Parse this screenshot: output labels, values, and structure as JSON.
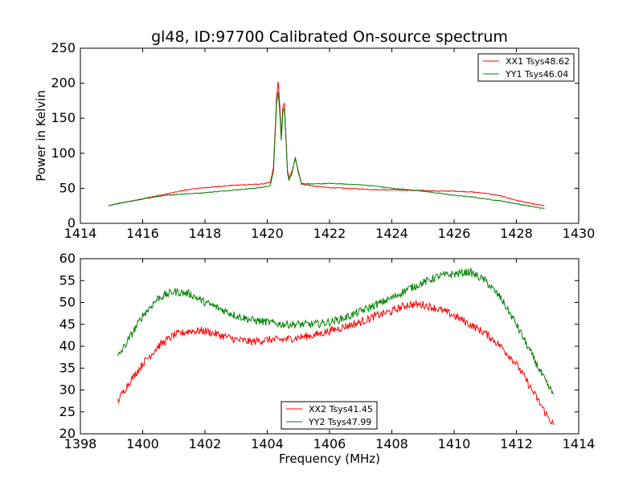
{
  "chart_data": [
    {
      "type": "line",
      "title": "gl48, ID:97700 Calibrated On-source spectrum",
      "xlabel": "",
      "ylabel": "Power in Kelvin",
      "xlim": [
        1414,
        1430
      ],
      "ylim": [
        0,
        250
      ],
      "xticks": [
        1414,
        1416,
        1418,
        1420,
        1422,
        1424,
        1426,
        1428,
        1430
      ],
      "yticks": [
        0,
        50,
        100,
        150,
        200,
        250
      ],
      "grid": false,
      "legend": "upper-right",
      "series": [
        {
          "name": "XX1 Tsys48.62",
          "color": "#ff0000",
          "x": [
            1414.9,
            1415.3,
            1415.8,
            1416.3,
            1416.8,
            1417.3,
            1417.8,
            1418.3,
            1418.8,
            1419.3,
            1419.8,
            1420.1,
            1420.2,
            1420.3,
            1420.35,
            1420.4,
            1420.45,
            1420.5,
            1420.55,
            1420.6,
            1420.65,
            1420.7,
            1420.8,
            1420.9,
            1421.0,
            1421.1,
            1421.5,
            1422.0,
            1422.5,
            1423.0,
            1423.5,
            1424.0,
            1424.5,
            1425.0,
            1425.5,
            1426.0,
            1426.5,
            1427.0,
            1427.5,
            1428.0,
            1428.5,
            1428.9
          ],
          "values": [
            25,
            29,
            33,
            38,
            42,
            47,
            50,
            52,
            54,
            55,
            56,
            58,
            80,
            180,
            203,
            170,
            125,
            165,
            172,
            125,
            75,
            65,
            75,
            92,
            75,
            56,
            53,
            51,
            50,
            49,
            48,
            48,
            47,
            47,
            46,
            46,
            45,
            43,
            39,
            33,
            28,
            25
          ]
        },
        {
          "name": "YY1 Tsys46.04",
          "color": "#008000",
          "x": [
            1414.9,
            1415.3,
            1415.8,
            1416.3,
            1416.8,
            1417.3,
            1417.8,
            1418.3,
            1418.8,
            1419.3,
            1419.8,
            1420.1,
            1420.2,
            1420.3,
            1420.35,
            1420.4,
            1420.45,
            1420.5,
            1420.55,
            1420.6,
            1420.65,
            1420.7,
            1420.8,
            1420.9,
            1421.0,
            1421.1,
            1421.5,
            1422.0,
            1422.5,
            1423.0,
            1423.5,
            1424.0,
            1424.5,
            1425.0,
            1425.5,
            1426.0,
            1426.5,
            1427.0,
            1427.5,
            1428.0,
            1428.5,
            1428.9
          ],
          "values": [
            25,
            29,
            33,
            37,
            40,
            42,
            43,
            45,
            47,
            49,
            51,
            54,
            75,
            170,
            188,
            160,
            118,
            158,
            165,
            120,
            72,
            62,
            72,
            95,
            72,
            57,
            56,
            57,
            56,
            55,
            53,
            50,
            48,
            46,
            43,
            40,
            38,
            35,
            32,
            28,
            24,
            21
          ]
        }
      ]
    },
    {
      "type": "line",
      "title": "",
      "xlabel": "Frequency (MHz)",
      "ylabel": "",
      "xlim": [
        1398,
        1414
      ],
      "ylim": [
        20,
        60
      ],
      "xticks": [
        1398,
        1400,
        1402,
        1404,
        1406,
        1408,
        1410,
        1412,
        1414
      ],
      "yticks": [
        20,
        25,
        30,
        35,
        40,
        45,
        50,
        55,
        60
      ],
      "grid": false,
      "legend": "lower-center",
      "series": [
        {
          "name": "XX2 Tsys41.45",
          "color": "#ff0000",
          "x": [
            1399.2,
            1399.5,
            1400.0,
            1400.5,
            1401.0,
            1401.5,
            1402.0,
            1402.5,
            1403.0,
            1403.5,
            1404.0,
            1404.5,
            1405.0,
            1405.5,
            1406.0,
            1406.5,
            1407.0,
            1407.5,
            1408.0,
            1408.5,
            1409.0,
            1409.5,
            1410.0,
            1410.5,
            1411.0,
            1411.5,
            1412.0,
            1412.5,
            1413.0,
            1413.2
          ],
          "values": [
            27.5,
            31,
            36,
            40,
            42.5,
            43.5,
            43.5,
            42.5,
            41.5,
            41,
            41.5,
            41.5,
            42,
            42.5,
            43.5,
            44.5,
            45.5,
            47,
            48,
            49.5,
            49.5,
            48.5,
            47,
            45,
            43,
            40,
            36,
            30,
            24,
            22
          ]
        },
        {
          "name": "YY2 Tsys47.99",
          "color": "#008000",
          "x": [
            1399.2,
            1399.5,
            1400.0,
            1400.5,
            1401.0,
            1401.5,
            1402.0,
            1402.5,
            1403.0,
            1403.5,
            1404.0,
            1404.5,
            1405.0,
            1405.5,
            1406.0,
            1406.5,
            1407.0,
            1407.5,
            1408.0,
            1408.5,
            1409.0,
            1409.5,
            1410.0,
            1410.5,
            1411.0,
            1411.5,
            1412.0,
            1412.5,
            1413.0,
            1413.2
          ],
          "values": [
            37.5,
            41,
            47,
            51,
            52.5,
            52,
            50,
            48.5,
            47,
            46,
            45.5,
            45,
            45,
            45,
            45.5,
            46.5,
            48,
            49.5,
            51,
            53,
            54.5,
            56,
            56.5,
            57,
            55,
            51,
            45,
            38,
            31,
            29
          ]
        }
      ]
    }
  ]
}
